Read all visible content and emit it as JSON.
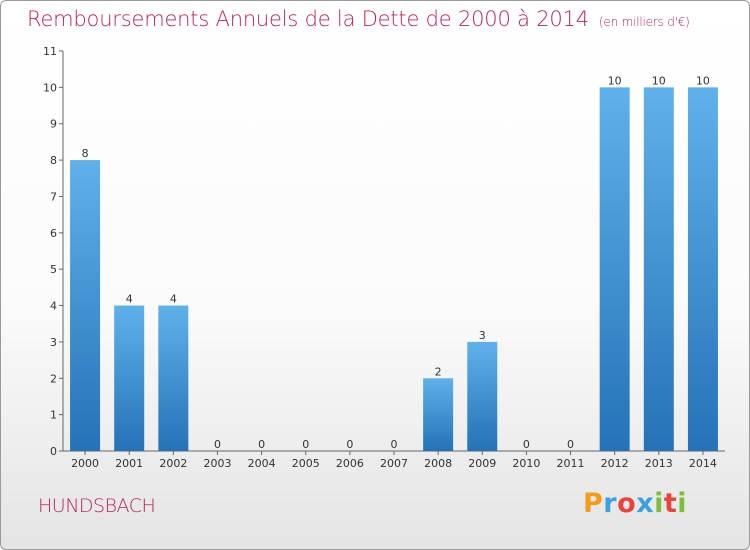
{
  "chart_data": {
    "type": "bar",
    "title": "Remboursements Annuels de la Dette de 2000 à 2014",
    "unit_note": "(en milliers d'€)",
    "categories": [
      "2000",
      "2001",
      "2002",
      "2003",
      "2004",
      "2005",
      "2006",
      "2007",
      "2008",
      "2009",
      "2010",
      "2011",
      "2012",
      "2013",
      "2014"
    ],
    "values": [
      8,
      4,
      4,
      0,
      0,
      0,
      0,
      0,
      2,
      3,
      0,
      0,
      10,
      10,
      10
    ],
    "xlabel": "",
    "ylabel": "",
    "ylim": [
      0,
      11
    ],
    "yticks": [
      0,
      1,
      2,
      3,
      4,
      5,
      6,
      7,
      8,
      9,
      10,
      11
    ],
    "grid": false,
    "bar_color": "#3a95d8"
  },
  "commune": "HUNDSBACH",
  "logo": {
    "letters": [
      "P",
      "r",
      "o",
      "x",
      "i",
      "t",
      "i"
    ],
    "colors": [
      "#f39c1c",
      "#3aa0df",
      "#e8443a",
      "#3aa0df",
      "#7cbf3a",
      "#e8443a",
      "#7cbf3a"
    ]
  }
}
